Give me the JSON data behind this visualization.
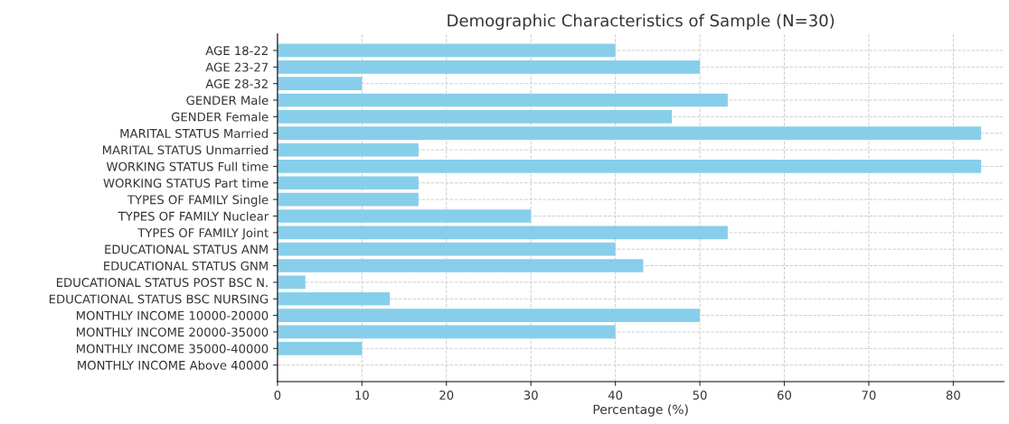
{
  "chart_data": {
    "type": "bar",
    "orientation": "horizontal",
    "title": "Demographic Characteristics of Sample (N=30)",
    "xlabel": "Percentage (%)",
    "categories": [
      "AGE 18-22",
      "AGE 23-27",
      "AGE 28-32",
      "GENDER Male",
      "GENDER Female",
      "MARITAL STATUS Married",
      "MARITAL STATUS Unmarried",
      "WORKING STATUS Full time",
      "WORKING STATUS Part time",
      "TYPES OF FAMILY Single",
      "TYPES OF FAMILY Nuclear",
      "TYPES OF FAMILY Joint",
      "EDUCATIONAL STATUS ANM",
      "EDUCATIONAL STATUS GNM",
      "EDUCATIONAL STATUS POST BSC N.",
      "EDUCATIONAL STATUS BSC NURSING",
      "MONTHLY INCOME 10000-20000",
      "MONTHLY INCOME 20000-35000",
      "MONTHLY INCOME 35000-40000",
      "MONTHLY INCOME Above 40000"
    ],
    "values": [
      40,
      50,
      10,
      53.3,
      46.7,
      83.3,
      16.7,
      83.3,
      16.7,
      16.7,
      30,
      53.3,
      40,
      43.3,
      3.3,
      13.3,
      50,
      40,
      10,
      0
    ],
    "color": "#87ceeb",
    "xlim": [
      0,
      86
    ],
    "xticks": [
      0,
      10,
      20,
      30,
      40,
      50,
      60,
      70,
      80
    ],
    "grid": true
  }
}
